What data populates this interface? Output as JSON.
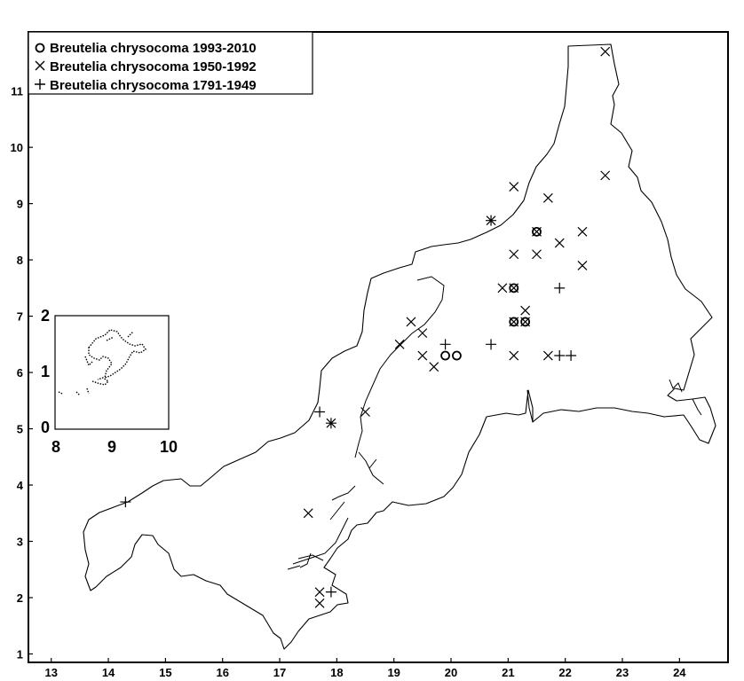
{
  "chart_data": {
    "type": "scatter",
    "title": "",
    "xlabel": "",
    "ylabel": "",
    "xlim": [
      12.6,
      24.85
    ],
    "ylim": [
      0.85,
      12.05
    ],
    "x_ticks": [
      "13",
      "14",
      "15",
      "16",
      "17",
      "18",
      "19",
      "20",
      "21",
      "22",
      "23",
      "24"
    ],
    "y_ticks": [
      "1",
      "2",
      "3",
      "4",
      "5",
      "6",
      "7",
      "8",
      "9",
      "10",
      "11"
    ],
    "grid": false,
    "legend_position": "top-left",
    "legend": [
      {
        "symbol": "circle",
        "label": "Breutelia chrysocoma 1993-2010"
      },
      {
        "symbol": "x",
        "label": "Breutelia chrysocoma 1950-1992"
      },
      {
        "symbol": "plus",
        "label": "Breutelia chrysocoma 1791-1949"
      }
    ],
    "series": [
      {
        "name": "Breutelia chrysocoma 1993-2010",
        "marker": "circle",
        "points": [
          [
            21.5,
            8.5
          ],
          [
            21.1,
            7.5
          ],
          [
            21.1,
            6.9
          ],
          [
            21.3,
            6.9
          ],
          [
            19.9,
            6.3
          ],
          [
            20.1,
            6.3
          ]
        ]
      },
      {
        "name": "Breutelia chrysocoma 1950-1992",
        "marker": "x",
        "points": [
          [
            22.7,
            11.7
          ],
          [
            22.7,
            9.5
          ],
          [
            21.1,
            9.3
          ],
          [
            21.7,
            9.1
          ],
          [
            20.7,
            8.7
          ],
          [
            21.5,
            8.5
          ],
          [
            22.3,
            8.5
          ],
          [
            21.9,
            8.3
          ],
          [
            21.1,
            8.1
          ],
          [
            21.5,
            8.1
          ],
          [
            22.3,
            7.9
          ],
          [
            20.9,
            7.5
          ],
          [
            21.1,
            7.5
          ],
          [
            21.3,
            7.1
          ],
          [
            21.1,
            6.9
          ],
          [
            21.3,
            6.9
          ],
          [
            19.3,
            6.9
          ],
          [
            19.5,
            6.7
          ],
          [
            19.1,
            6.5
          ],
          [
            19.5,
            6.3
          ],
          [
            21.1,
            6.3
          ],
          [
            21.7,
            6.3
          ],
          [
            19.7,
            6.1
          ],
          [
            18.5,
            5.3
          ],
          [
            17.9,
            5.1
          ],
          [
            17.5,
            3.5
          ],
          [
            17.7,
            2.1
          ],
          [
            17.7,
            1.9
          ]
        ]
      },
      {
        "name": "Breutelia chrysocoma 1791-1949",
        "marker": "plus",
        "points": [
          [
            20.7,
            8.7
          ],
          [
            21.9,
            7.5
          ],
          [
            19.9,
            6.5
          ],
          [
            20.7,
            6.5
          ],
          [
            21.9,
            6.3
          ],
          [
            22.1,
            6.3
          ],
          [
            17.7,
            5.3
          ],
          [
            17.9,
            5.1
          ],
          [
            14.3,
            3.7
          ],
          [
            17.9,
            2.1
          ]
        ]
      }
    ]
  },
  "inset": {
    "x_ticks": [
      "8",
      "9",
      "10"
    ],
    "y_ticks": [
      "0",
      "1",
      "2"
    ]
  }
}
